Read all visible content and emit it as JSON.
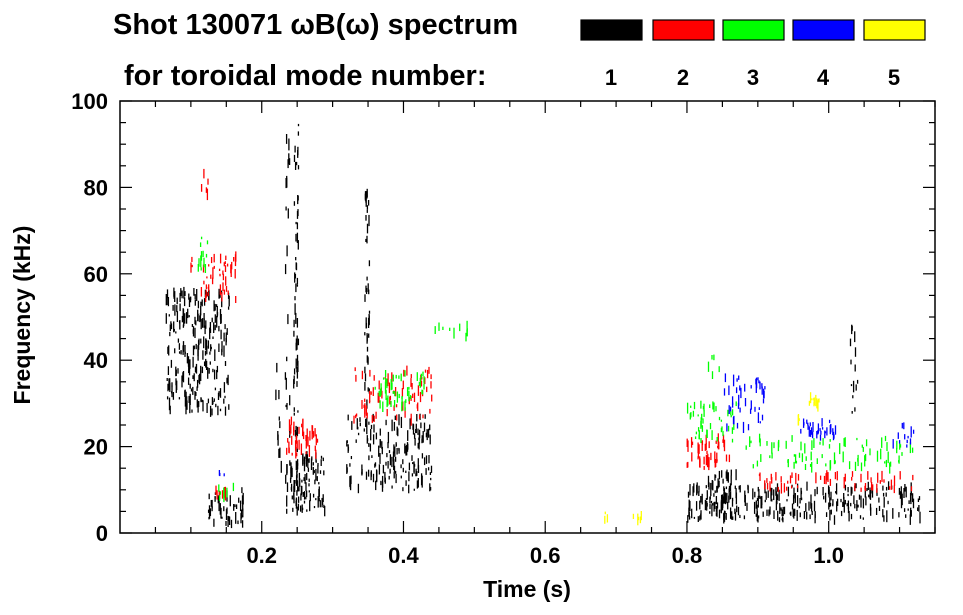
{
  "chart_data": {
    "type": "scatter",
    "subtype": "spectrogram",
    "title_line1": "Shot 130071 ωB(ω) spectrum",
    "title_line2": "for toroidal mode number:",
    "xlabel": "Time (s)",
    "ylabel": "Frequency (kHz)",
    "xlim": [
      0.0,
      1.15
    ],
    "ylim": [
      0,
      100
    ],
    "x_ticks": [
      {
        "value": 0.2,
        "label": "0.2"
      },
      {
        "value": 0.4,
        "label": "0.4"
      },
      {
        "value": 0.6,
        "label": "0.6"
      },
      {
        "value": 0.8,
        "label": "0.8"
      },
      {
        "value": 1.0,
        "label": "1.0"
      }
    ],
    "y_ticks": [
      {
        "value": 0,
        "label": "0"
      },
      {
        "value": 20,
        "label": "20"
      },
      {
        "value": 40,
        "label": "40"
      },
      {
        "value": 60,
        "label": "60"
      },
      {
        "value": 80,
        "label": "80"
      },
      {
        "value": 100,
        "label": "100"
      }
    ],
    "grid": false,
    "legend": [
      {
        "label": "1",
        "color": "#000000"
      },
      {
        "label": "2",
        "color": "#ff0000"
      },
      {
        "label": "3",
        "color": "#00ff00"
      },
      {
        "label": "4",
        "color": "#0000ff"
      },
      {
        "label": "5",
        "color": "#ffff00"
      }
    ],
    "series": [
      {
        "name": "n=1",
        "color": "#000000",
        "regions": [
          {
            "t": [
              0.065,
              0.155
            ],
            "f": [
              28,
              56
            ],
            "density": 240
          },
          {
            "t": [
              0.125,
              0.175
            ],
            "f": [
              2,
              10
            ],
            "density": 45
          },
          {
            "t": [
              0.235,
              0.29
            ],
            "f": [
              5,
              18
            ],
            "density": 95
          },
          {
            "t": [
              0.245,
              0.252
            ],
            "f": [
              8,
              96
            ],
            "density": 65
          },
          {
            "t": [
              0.232,
              0.24
            ],
            "f": [
              10,
              95
            ],
            "density": 25
          },
          {
            "t": [
              0.345,
              0.352
            ],
            "f": [
              22,
              84
            ],
            "density": 45
          },
          {
            "t": [
              0.32,
              0.44
            ],
            "f": [
              10,
              27
            ],
            "density": 170
          },
          {
            "t": [
              0.8,
              1.13
            ],
            "f": [
              3,
              11
            ],
            "density": 270
          },
          {
            "t": [
              0.83,
              0.87
            ],
            "f": [
              6,
              14
            ],
            "density": 45
          },
          {
            "t": [
              1.03,
              1.045
            ],
            "f": [
              25,
              53
            ],
            "density": 14
          },
          {
            "t": [
              0.22,
              0.23
            ],
            "f": [
              10,
              40
            ],
            "density": 10
          }
        ]
      },
      {
        "name": "n=2",
        "color": "#ff0000",
        "regions": [
          {
            "t": [
              0.1,
              0.165
            ],
            "f": [
              54,
              64
            ],
            "density": 45
          },
          {
            "t": [
              0.115,
              0.125
            ],
            "f": [
              78,
              84
            ],
            "density": 5
          },
          {
            "t": [
              0.135,
              0.15
            ],
            "f": [
              6,
              10
            ],
            "density": 8
          },
          {
            "t": [
              0.235,
              0.28
            ],
            "f": [
              18,
              26
            ],
            "density": 45
          },
          {
            "t": [
              0.33,
              0.44
            ],
            "f": [
              26,
              38
            ],
            "density": 75
          },
          {
            "t": [
              0.8,
              0.86
            ],
            "f": [
              15,
              22
            ],
            "density": 45
          },
          {
            "t": [
              0.9,
              1.12
            ],
            "f": [
              10,
              14
            ],
            "density": 55
          }
        ]
      },
      {
        "name": "n=3",
        "color": "#00ff00",
        "regions": [
          {
            "t": [
              0.11,
              0.125
            ],
            "f": [
              60,
              72
            ],
            "density": 12
          },
          {
            "t": [
              0.135,
              0.16
            ],
            "f": [
              7,
              11
            ],
            "density": 8
          },
          {
            "t": [
              0.36,
              0.43
            ],
            "f": [
              29,
              37
            ],
            "density": 45
          },
          {
            "t": [
              0.44,
              0.49
            ],
            "f": [
              45,
              48
            ],
            "density": 10
          },
          {
            "t": [
              0.8,
              0.87
            ],
            "f": [
              21,
              30
            ],
            "density": 45
          },
          {
            "t": [
              0.88,
              1.12
            ],
            "f": [
              15,
              22
            ],
            "density": 80
          },
          {
            "t": [
              0.83,
              0.85
            ],
            "f": [
              36,
              43
            ],
            "density": 5
          }
        ]
      },
      {
        "name": "n=4",
        "color": "#0000ff",
        "regions": [
          {
            "t": [
              0.85,
              0.91
            ],
            "f": [
              24,
              36
            ],
            "density": 45
          },
          {
            "t": [
              0.96,
              1.01
            ],
            "f": [
              22,
              26
            ],
            "density": 30
          },
          {
            "t": [
              1.09,
              1.12
            ],
            "f": [
              20,
              25
            ],
            "density": 12
          },
          {
            "t": [
              0.14,
              0.15
            ],
            "f": [
              13,
              15
            ],
            "density": 3
          }
        ]
      },
      {
        "name": "n=5",
        "color": "#ffff00",
        "regions": [
          {
            "t": [
              0.97,
              0.99
            ],
            "f": [
              29,
              32
            ],
            "density": 12
          },
          {
            "t": [
              0.68,
              0.74
            ],
            "f": [
              3,
              5
            ],
            "density": 8
          },
          {
            "t": [
              0.95,
              0.96
            ],
            "f": [
              25,
              27
            ],
            "density": 3
          }
        ]
      }
    ]
  }
}
